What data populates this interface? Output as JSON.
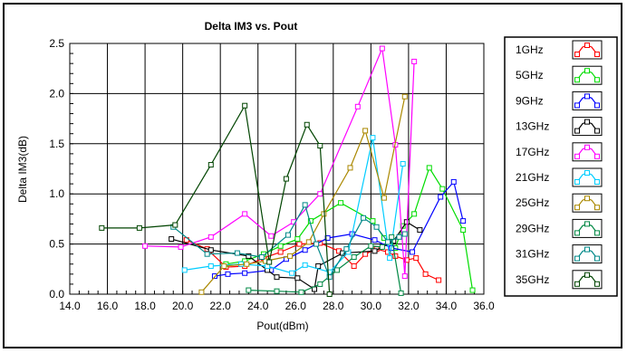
{
  "chart_data": {
    "type": "line",
    "title": "Delta IM3 vs. Pout",
    "xlabel": "Pout(dBm)",
    "ylabel": "Delta IM3(dB)",
    "xlim": [
      14.0,
      36.0
    ],
    "ylim": [
      0.0,
      2.5
    ],
    "xticks": [
      "14.0",
      "16.0",
      "18.0",
      "20.0",
      "22.0",
      "24.0",
      "26.0",
      "28.0",
      "30.0",
      "32.0",
      "34.0",
      "36.0"
    ],
    "yticks": [
      "0.0",
      "0.5",
      "1.0",
      "1.5",
      "2.0",
      "2.5"
    ],
    "grid": true,
    "legend_position": "right",
    "series": [
      {
        "name": "1GHz",
        "color": "#ff0000",
        "points": [
          [
            20.2,
            0.54
          ],
          [
            21.3,
            0.45
          ],
          [
            22.3,
            0.27
          ],
          [
            23.3,
            0.28
          ],
          [
            24.3,
            0.36
          ],
          [
            25.2,
            0.42
          ],
          [
            26.2,
            0.5
          ],
          [
            27.3,
            0.51
          ],
          [
            28.3,
            0.43
          ],
          [
            29.1,
            0.28
          ],
          [
            29.7,
            0.4
          ],
          [
            30.3,
            0.45
          ],
          [
            30.9,
            0.42
          ],
          [
            31.3,
            0.38
          ],
          [
            31.9,
            0.34
          ],
          [
            32.4,
            0.36
          ],
          [
            32.9,
            0.2
          ],
          [
            33.6,
            0.14
          ]
        ]
      },
      {
        "name": "5GHz",
        "color": "#00dd00",
        "points": [
          [
            22.3,
            0.3
          ],
          [
            23.3,
            0.33
          ],
          [
            24.3,
            0.4
          ],
          [
            25.2,
            0.48
          ],
          [
            26.1,
            0.55
          ],
          [
            26.8,
            0.73
          ],
          [
            28.4,
            0.91
          ],
          [
            30.1,
            0.73
          ],
          [
            30.7,
            0.56
          ],
          [
            31.3,
            0.46
          ],
          [
            31.7,
            0.68
          ],
          [
            32.3,
            0.8
          ],
          [
            33.1,
            1.26
          ],
          [
            33.8,
            1.05
          ],
          [
            34.9,
            0.64
          ],
          [
            35.4,
            0.04
          ]
        ]
      },
      {
        "name": "9GHz",
        "color": "#0000ff",
        "points": [
          [
            21.7,
            0.18
          ],
          [
            22.4,
            0.2
          ],
          [
            23.3,
            0.21
          ],
          [
            24.7,
            0.24
          ],
          [
            25.5,
            0.35
          ],
          [
            26.5,
            0.44
          ],
          [
            27.7,
            0.56
          ],
          [
            29.0,
            0.6
          ],
          [
            30.2,
            0.54
          ],
          [
            31.1,
            0.46
          ],
          [
            32.2,
            0.42
          ],
          [
            33.7,
            0.97
          ],
          [
            34.4,
            1.12
          ],
          [
            34.9,
            0.73
          ]
        ]
      },
      {
        "name": "13GHz",
        "color": "#000000",
        "points": [
          [
            19.4,
            0.55
          ],
          [
            21.5,
            0.44
          ],
          [
            23.5,
            0.38
          ],
          [
            24.5,
            0.24
          ],
          [
            25.0,
            0.17
          ],
          [
            26.1,
            0.16
          ],
          [
            27.0,
            0.05
          ],
          [
            27.2,
            0.28
          ],
          [
            28.5,
            0.41
          ],
          [
            30.2,
            0.43
          ],
          [
            31.2,
            0.53
          ],
          [
            31.9,
            0.72
          ],
          [
            32.6,
            0.64
          ]
        ]
      },
      {
        "name": "17GHz",
        "color": "#ff00ff",
        "points": [
          [
            18.0,
            0.48
          ],
          [
            19.9,
            0.47
          ],
          [
            21.5,
            0.57
          ],
          [
            23.3,
            0.8
          ],
          [
            24.7,
            0.58
          ],
          [
            25.9,
            0.72
          ],
          [
            27.3,
            1.0
          ],
          [
            29.3,
            1.87
          ],
          [
            30.6,
            2.45
          ],
          [
            31.3,
            1.49
          ],
          [
            31.8,
            0.18
          ],
          [
            32.3,
            2.32
          ]
        ]
      },
      {
        "name": "21GHz",
        "color": "#00ccff",
        "points": [
          [
            20.1,
            0.24
          ],
          [
            21.5,
            0.28
          ],
          [
            23.1,
            0.3
          ],
          [
            24.5,
            0.28
          ],
          [
            25.8,
            0.21
          ],
          [
            26.5,
            0.29
          ],
          [
            27.8,
            0.22
          ],
          [
            28.8,
            0.42
          ],
          [
            30.1,
            1.56
          ],
          [
            31.0,
            0.36
          ],
          [
            31.7,
            1.3
          ]
        ]
      },
      {
        "name": "25GHz",
        "color": "#aa8800",
        "points": [
          [
            21.0,
            0.02
          ],
          [
            22.2,
            0.28
          ],
          [
            23.4,
            0.3
          ],
          [
            24.4,
            0.33
          ],
          [
            25.7,
            0.38
          ],
          [
            26.7,
            0.52
          ],
          [
            27.5,
            0.8
          ],
          [
            28.9,
            1.26
          ],
          [
            29.7,
            1.63
          ],
          [
            30.7,
            0.96
          ],
          [
            31.8,
            1.97
          ]
        ]
      },
      {
        "name": "29GHz",
        "color": "#008844",
        "points": [
          [
            23.5,
            0.04
          ],
          [
            25.0,
            0.03
          ],
          [
            26.3,
            0.02
          ],
          [
            27.3,
            0.1
          ],
          [
            28.2,
            0.24
          ],
          [
            29.1,
            0.37
          ],
          [
            30.0,
            0.48
          ],
          [
            30.6,
            0.47
          ],
          [
            31.1,
            0.57
          ],
          [
            31.6,
            0.01
          ]
        ]
      },
      {
        "name": "31GHz",
        "color": "#008888",
        "points": [
          [
            19.5,
            0.67
          ],
          [
            21.3,
            0.4
          ],
          [
            22.9,
            0.41
          ],
          [
            24.2,
            0.37
          ],
          [
            25.6,
            0.59
          ],
          [
            26.5,
            0.89
          ],
          [
            27.1,
            0.5
          ],
          [
            27.8,
            0.17
          ],
          [
            28.7,
            0.45
          ],
          [
            29.6,
            0.76
          ],
          [
            30.3,
            0.67
          ],
          [
            30.9,
            0.52
          ],
          [
            31.5,
            0.57
          ],
          [
            31.8,
            0.6
          ]
        ]
      },
      {
        "name": "35GHz",
        "color": "#004400",
        "points": [
          [
            15.7,
            0.66
          ],
          [
            17.7,
            0.66
          ],
          [
            19.6,
            0.69
          ],
          [
            21.5,
            1.29
          ],
          [
            23.3,
            1.88
          ],
          [
            24.6,
            0.32
          ],
          [
            25.5,
            1.15
          ],
          [
            26.6,
            1.69
          ],
          [
            27.3,
            1.48
          ],
          [
            27.8,
            0.0
          ]
        ]
      }
    ]
  }
}
